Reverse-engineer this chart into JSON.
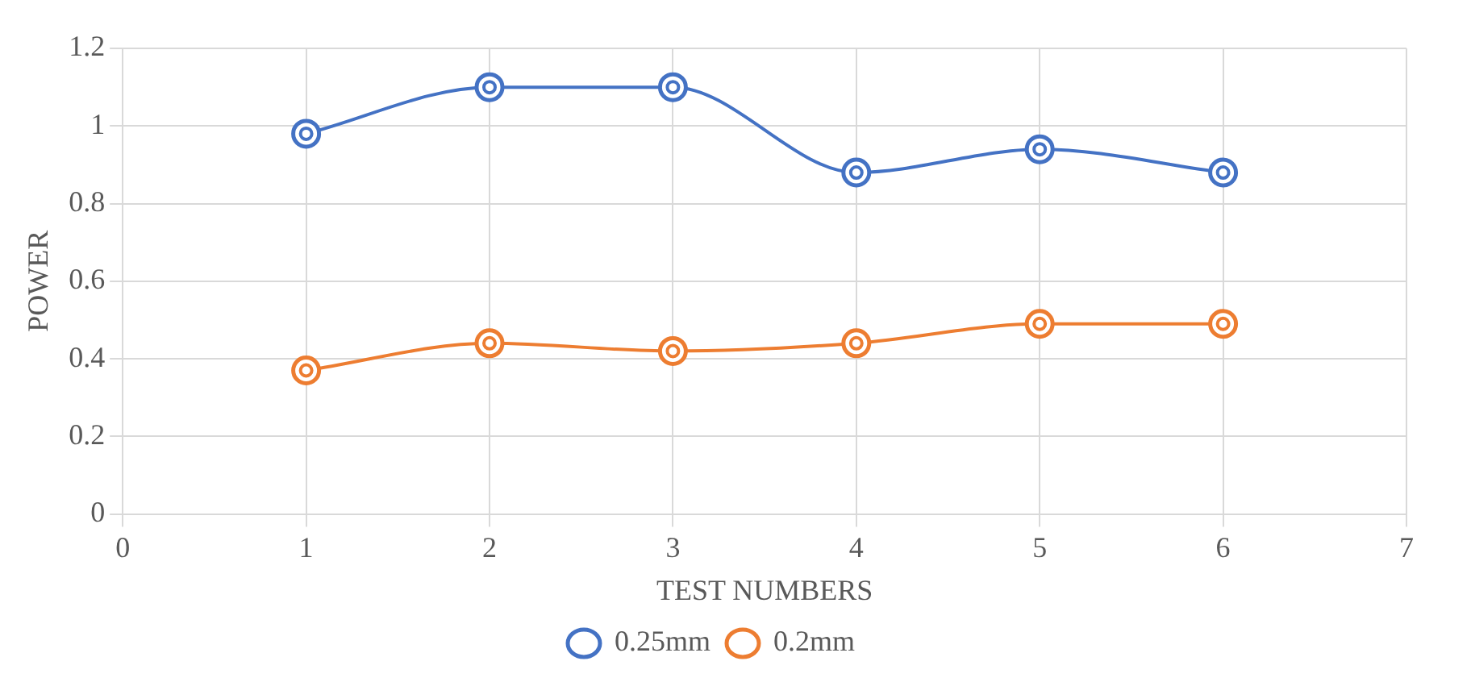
{
  "chart_data": {
    "type": "line",
    "xlabel": "TEST NUMBERS",
    "ylabel": "POWER",
    "x": [
      1,
      2,
      3,
      4,
      5,
      6
    ],
    "series": [
      {
        "name": "0.25mm",
        "color": "#4472c4",
        "values": [
          0.98,
          1.1,
          1.1,
          0.88,
          0.94,
          0.88
        ]
      },
      {
        "name": "0.2mm",
        "color": "#ed7d31",
        "values": [
          0.37,
          0.44,
          0.42,
          0.44,
          0.49,
          0.49
        ]
      }
    ],
    "xlim": [
      0,
      7
    ],
    "xticks": [
      0,
      1,
      2,
      3,
      4,
      5,
      6,
      7
    ],
    "ylim": [
      0,
      1.2
    ],
    "yticks": [
      0,
      0.2,
      0.4,
      0.6,
      0.8,
      1,
      1.2
    ],
    "grid": true,
    "legend": "bottom",
    "marker": "circle",
    "line_style": "solid"
  }
}
